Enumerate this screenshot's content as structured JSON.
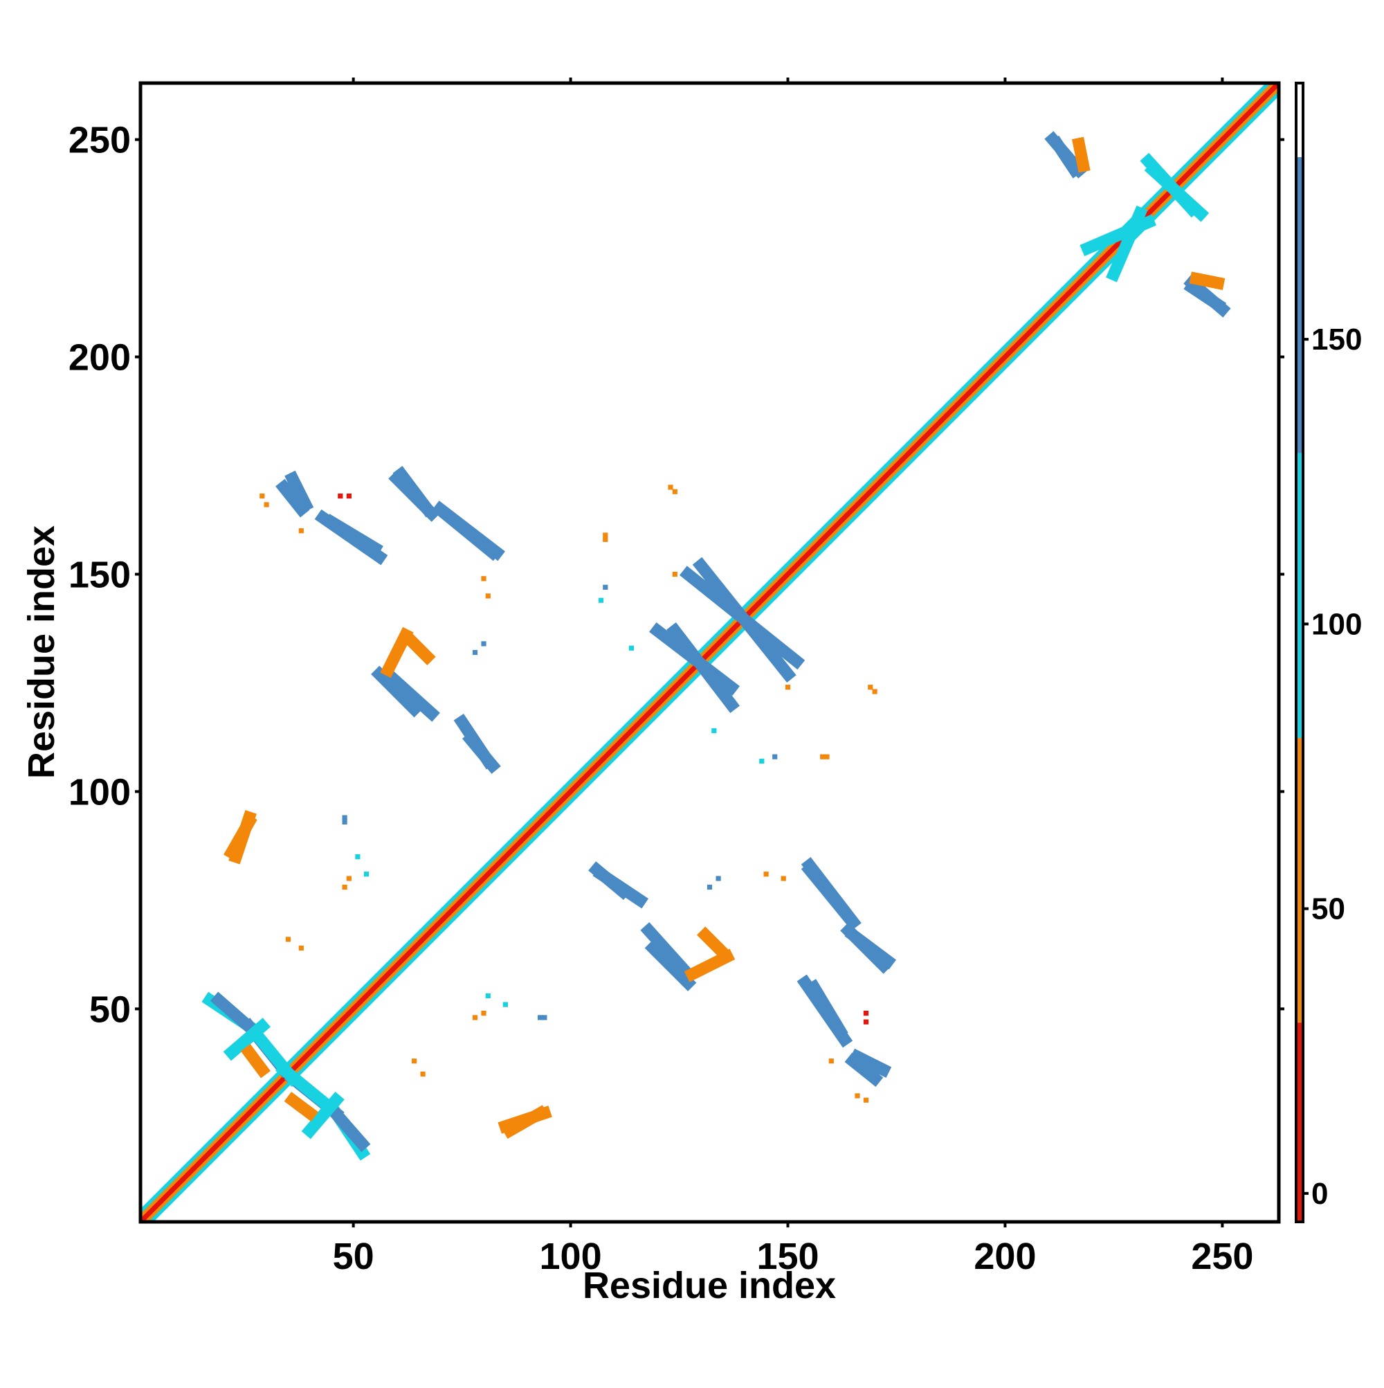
{
  "chart_data": {
    "type": "heatmap",
    "title": "",
    "xlabel": "Residue index",
    "ylabel": "Residue index",
    "xlim": [
      1,
      263
    ],
    "ylim": [
      1,
      263
    ],
    "x_ticks": [
      50,
      100,
      150,
      200,
      250
    ],
    "y_ticks": [
      50,
      100,
      150,
      200,
      250
    ],
    "colorbar": {
      "ticks": [
        0,
        50,
        100,
        150
      ],
      "range": [
        -5,
        195
      ],
      "bands": [
        {
          "from": -5,
          "to": 30,
          "color": "#e5150c"
        },
        {
          "from": 30,
          "to": 80,
          "color": "#f2870a"
        },
        {
          "from": 80,
          "to": 130,
          "color": "#18d2e2"
        },
        {
          "from": 130,
          "to": 182,
          "color": "#4a8ac4"
        },
        {
          "from": 182,
          "to": 195,
          "color": "#ffffff"
        }
      ]
    },
    "colors": {
      "red": "#e5150c",
      "orange": "#f2870a",
      "cyan": "#18d2e2",
      "blue": "#4a8ac4",
      "frame": "#000000"
    },
    "diagonal": {
      "from": 1,
      "to": 263
    },
    "segments": [
      {
        "x": [
          17,
          26
        ],
        "y": [
          52,
          46
        ],
        "value": 100
      },
      {
        "x": [
          26,
          34
        ],
        "y": [
          46,
          36
        ],
        "value": 150
      },
      {
        "x": [
          34,
          45
        ],
        "y": [
          36,
          27
        ],
        "value": 100
      },
      {
        "x": [
          45,
          52
        ],
        "y": [
          27,
          19
        ],
        "value": 150
      },
      {
        "x": [
          22,
          29
        ],
        "y": [
          40,
          46
        ],
        "value": 100
      },
      {
        "x": [
          36,
          40
        ],
        "y": [
          29,
          26
        ],
        "value": 50
      },
      {
        "x": [
          34,
          38
        ],
        "y": [
          170,
          165
        ],
        "value": 150
      },
      {
        "x": [
          43,
          56
        ],
        "y": [
          163,
          154
        ],
        "value": 150
      },
      {
        "x": [
          60,
          68
        ],
        "y": [
          172,
          164
        ],
        "value": 150
      },
      {
        "x": [
          71,
          82
        ],
        "y": [
          164,
          155
        ],
        "value": 150
      },
      {
        "x": [
          56,
          64
        ],
        "y": [
          127,
          119
        ],
        "value": 150
      },
      {
        "x": [
          63,
          67
        ],
        "y": [
          135,
          131
        ],
        "value": 50
      },
      {
        "x": [
          75,
          81
        ],
        "y": [
          116,
          107
        ],
        "value": 150
      },
      {
        "x": [
          106,
          112
        ],
        "y": [
          82,
          77
        ],
        "value": 150
      },
      {
        "x": [
          118,
          127
        ],
        "y": [
          68,
          58
        ],
        "value": 150
      },
      {
        "x": [
          128,
          136
        ],
        "y": [
          58,
          62
        ],
        "value": 50
      },
      {
        "x": [
          120,
          137
        ],
        "y": [
          137,
          124
        ],
        "value": 150
      },
      {
        "x": [
          127,
          152
        ],
        "y": [
          150,
          130
        ],
        "value": 150
      },
      {
        "x": [
          155,
          165
        ],
        "y": [
          83,
          70
        ],
        "value": 150
      },
      {
        "x": [
          165,
          173
        ],
        "y": [
          67,
          61
        ],
        "value": 150
      },
      {
        "x": [
          156,
          162
        ],
        "y": [
          55,
          45
        ],
        "value": 150
      },
      {
        "x": [
          166,
          172
        ],
        "y": [
          39,
          36
        ],
        "value": 150
      },
      {
        "x": [
          85,
          94
        ],
        "y": [
          23,
          26
        ],
        "value": 50
      },
      {
        "x": [
          22,
          26
        ],
        "y": [
          86,
          93
        ],
        "value": 50
      },
      {
        "x": [
          212,
          216
        ],
        "y": [
          249,
          243
        ],
        "value": 150
      },
      {
        "x": [
          219,
          233
        ],
        "y": [
          225,
          231
        ],
        "value": 100
      },
      {
        "x": [
          233,
          243
        ],
        "y": [
          245,
          234
        ],
        "value": 100
      },
      {
        "x": [
          243,
          250
        ],
        "y": [
          217,
          211
        ],
        "value": 150
      },
      {
        "x": [
          244,
          249
        ],
        "y": [
          218,
          217
        ],
        "value": 50
      }
    ],
    "points": [
      {
        "x": 35,
        "y": 66,
        "value": 50
      },
      {
        "x": 49,
        "y": 80,
        "value": 50
      },
      {
        "x": 51,
        "y": 85,
        "value": 100
      },
      {
        "x": 48,
        "y": 94,
        "value": 150
      },
      {
        "x": 64,
        "y": 38,
        "value": 50
      },
      {
        "x": 78,
        "y": 48,
        "value": 50
      },
      {
        "x": 93,
        "y": 48,
        "value": 150
      },
      {
        "x": 81,
        "y": 53,
        "value": 100
      },
      {
        "x": 124,
        "y": 169,
        "value": 50
      },
      {
        "x": 108,
        "y": 158,
        "value": 50
      },
      {
        "x": 107,
        "y": 144,
        "value": 100
      },
      {
        "x": 80,
        "y": 134,
        "value": 150
      },
      {
        "x": 147,
        "y": 108,
        "value": 150
      },
      {
        "x": 159,
        "y": 108,
        "value": 50
      },
      {
        "x": 170,
        "y": 123,
        "value": 50
      },
      {
        "x": 150,
        "y": 124,
        "value": 50
      },
      {
        "x": 133,
        "y": 114,
        "value": 100
      },
      {
        "x": 132,
        "y": 78,
        "value": 150
      },
      {
        "x": 149,
        "y": 80,
        "value": 50
      },
      {
        "x": 168,
        "y": 29,
        "value": 50
      },
      {
        "x": 160,
        "y": 38,
        "value": 50
      },
      {
        "x": 168,
        "y": 47,
        "value": 0
      },
      {
        "x": 81,
        "y": 145,
        "value": 50
      },
      {
        "x": 30,
        "y": 166,
        "value": 50
      },
      {
        "x": 49,
        "y": 168,
        "value": 0
      }
    ]
  }
}
